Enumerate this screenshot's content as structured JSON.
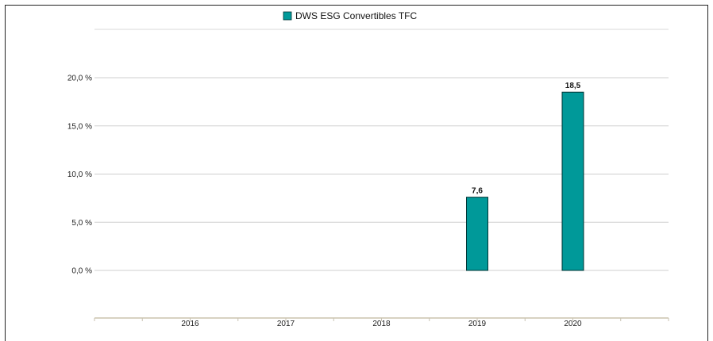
{
  "chart_data": {
    "type": "bar",
    "categories": [
      "2016",
      "2017",
      "2018",
      "2019",
      "2020"
    ],
    "series": [
      {
        "name": "DWS ESG Convertibles  TFC",
        "values": [
          null,
          null,
          null,
          7.6,
          18.5
        ],
        "labels": [
          "",
          "",
          "",
          "7,6",
          "18,5"
        ]
      }
    ],
    "ylim": [
      -5,
      25
    ],
    "yticks": [
      0,
      5,
      10,
      15,
      20
    ],
    "ytick_labels": [
      "0,0 %",
      "5,0 %",
      "10,0 %",
      "15,0 %",
      "20,0 %"
    ],
    "bar_color": "#009999",
    "grid": true,
    "legend_position": "top-center"
  }
}
